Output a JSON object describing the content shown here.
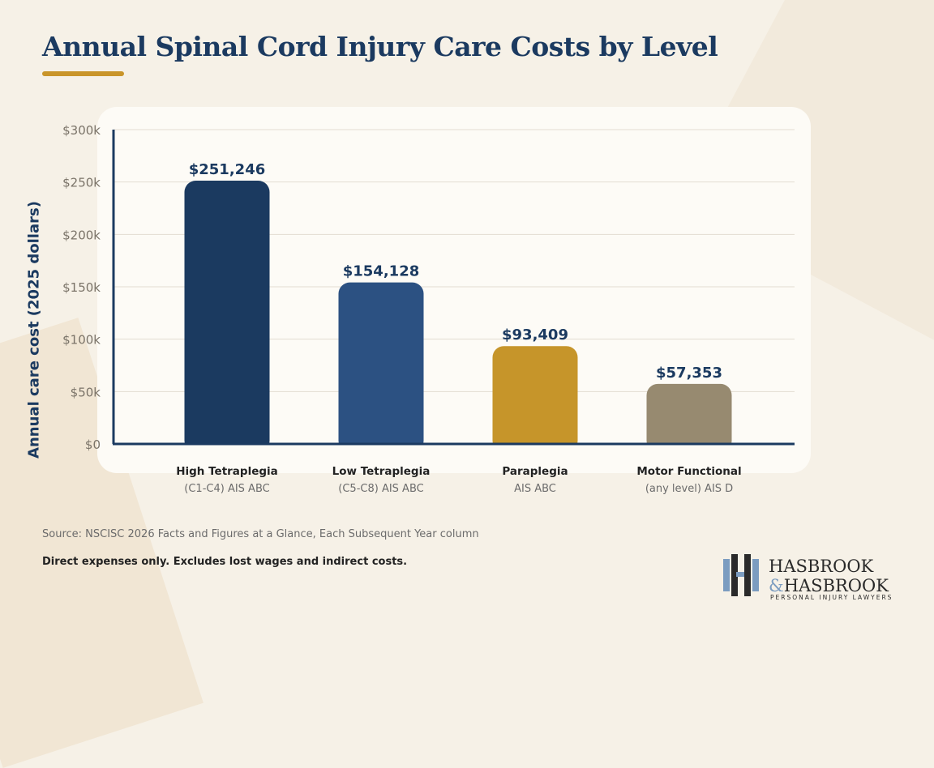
{
  "title": "Annual Spinal Cord Injury Care Costs by Level",
  "chart_data": {
    "type": "bar",
    "title": "Annual Spinal Cord Injury Care Costs by Level",
    "ylabel": "Annual care cost (2025 dollars)",
    "xlabel": "",
    "ylim": [
      0,
      300000
    ],
    "yticks": [
      0,
      50000,
      100000,
      150000,
      200000,
      250000,
      300000
    ],
    "ytick_labels": [
      "$0",
      "$50k",
      "$100k",
      "$150k",
      "$200k",
      "$250k",
      "$300k"
    ],
    "grid": true,
    "categories": [
      {
        "name": "High Tetraplegia",
        "sub": "(C1-C4) AIS ABC"
      },
      {
        "name": "Low Tetraplegia",
        "sub": "(C5-C8) AIS ABC"
      },
      {
        "name": "Paraplegia",
        "sub": "AIS ABC"
      },
      {
        "name": "Motor Functional",
        "sub": "(any level) AIS D"
      }
    ],
    "values": [
      251246,
      154128,
      93409,
      57353
    ],
    "data_labels": [
      "$251,246",
      "$154,128",
      "$93,409",
      "$57,353"
    ],
    "colors": [
      "#1b3a60",
      "#2c5182",
      "#c6952a",
      "#978a70"
    ]
  },
  "source": "Source: NSCISC 2026 Facts and Figures at a Glance, Each Subsequent Year column",
  "note": "Direct expenses only. Excludes lost wages and indirect costs.",
  "logo": {
    "line1": "HASBROOK",
    "line2": "& HASBROOK",
    "tagline": "PERSONAL INJURY LAWYERS"
  },
  "colors": {
    "title": "#1b3a60",
    "accent": "#c9952a",
    "background": "#f6f1e7"
  }
}
